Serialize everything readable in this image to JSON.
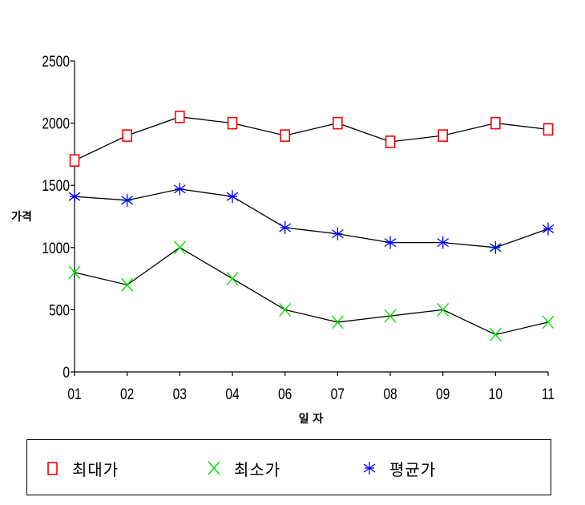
{
  "chart_data": {
    "type": "line",
    "ylabel": "가격",
    "xlabel": "일 자",
    "categories": [
      "01",
      "02",
      "03",
      "04",
      "06",
      "07",
      "08",
      "09",
      "10",
      "11"
    ],
    "yticks": [
      "0",
      "500",
      "1000",
      "1500",
      "2000",
      "2500"
    ],
    "ylim": [
      0,
      2500
    ],
    "grid": false,
    "legend_position": "bottom",
    "series": [
      {
        "name": "최대가",
        "marker": "square",
        "color": "#ff0000",
        "values": [
          1700,
          1900,
          2050,
          2000,
          1900,
          2000,
          1850,
          1900,
          2000,
          1950
        ]
      },
      {
        "name": "최소가",
        "marker": "x",
        "color": "#00e000",
        "values": [
          800,
          700,
          1000,
          750,
          500,
          400,
          450,
          500,
          300,
          400
        ]
      },
      {
        "name": "평균가",
        "marker": "star",
        "color": "#0000ff",
        "values": [
          1410,
          1380,
          1470,
          1410,
          1160,
          1110,
          1040,
          1040,
          1000,
          1150
        ]
      }
    ]
  }
}
